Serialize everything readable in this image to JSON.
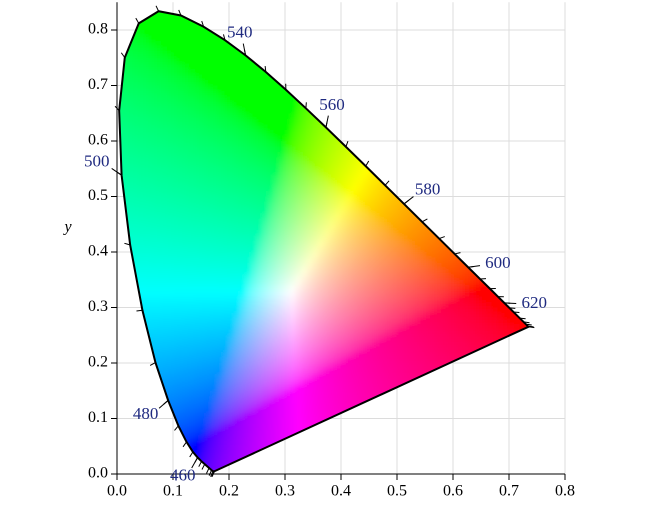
{
  "chart_data": {
    "type": "chromaticity",
    "y_label": "y",
    "xlim": [
      0,
      0.8
    ],
    "ylim": [
      0,
      0.85
    ],
    "xticks": [
      {
        "value": 0,
        "label": "0.0"
      },
      {
        "value": 0.1,
        "label": "0.1"
      },
      {
        "value": 0.2,
        "label": "0.2"
      },
      {
        "value": 0.3,
        "label": "0.3"
      },
      {
        "value": 0.4,
        "label": "0.4"
      },
      {
        "value": 0.5,
        "label": "0.5"
      },
      {
        "value": 0.6,
        "label": "0.6"
      },
      {
        "value": 0.7,
        "label": "0.7"
      },
      {
        "value": 0.8,
        "label": "0.8"
      }
    ],
    "yticks": [
      {
        "value": 0,
        "label": "0.0"
      },
      {
        "value": 0.1,
        "label": "0.1"
      },
      {
        "value": 0.2,
        "label": "0.2"
      },
      {
        "value": 0.3,
        "label": "0.3"
      },
      {
        "value": 0.4,
        "label": "0.4"
      },
      {
        "value": 0.5,
        "label": "0.5"
      },
      {
        "value": 0.6,
        "label": "0.6"
      },
      {
        "value": 0.7,
        "label": "0.7"
      },
      {
        "value": 0.8,
        "label": "0.8"
      }
    ],
    "grid": true,
    "white_point": [
      0.3127,
      0.329
    ],
    "locus": {
      "wavelengths": [
        380,
        400,
        420,
        430,
        440,
        450,
        455,
        460,
        465,
        470,
        475,
        480,
        485,
        490,
        495,
        500,
        505,
        510,
        515,
        520,
        525,
        530,
        535,
        540,
        545,
        550,
        555,
        560,
        565,
        570,
        575,
        580,
        585,
        590,
        595,
        600,
        605,
        610,
        615,
        620,
        625,
        630,
        640,
        650,
        660,
        680,
        700
      ],
      "x": [
        0.1741,
        0.1733,
        0.1714,
        0.1689,
        0.1644,
        0.1566,
        0.151,
        0.144,
        0.1355,
        0.1241,
        0.1096,
        0.0913,
        0.0687,
        0.0454,
        0.0235,
        0.0082,
        0.0039,
        0.0139,
        0.0389,
        0.0743,
        0.1142,
        0.1547,
        0.1929,
        0.2296,
        0.2658,
        0.3016,
        0.3373,
        0.3731,
        0.4087,
        0.4441,
        0.4788,
        0.5125,
        0.5448,
        0.5752,
        0.6029,
        0.627,
        0.6482,
        0.6658,
        0.6801,
        0.6915,
        0.7006,
        0.7079,
        0.719,
        0.726,
        0.73,
        0.7334,
        0.7347
      ],
      "y": [
        0.005,
        0.0048,
        0.0051,
        0.0069,
        0.0109,
        0.0177,
        0.0227,
        0.0297,
        0.0399,
        0.0578,
        0.0868,
        0.1327,
        0.2007,
        0.295,
        0.4127,
        0.5384,
        0.6548,
        0.7502,
        0.812,
        0.8338,
        0.8262,
        0.8059,
        0.7816,
        0.7543,
        0.7243,
        0.6923,
        0.6589,
        0.6245,
        0.5896,
        0.5547,
        0.5202,
        0.4866,
        0.4544,
        0.4242,
        0.3965,
        0.3725,
        0.3514,
        0.334,
        0.3197,
        0.3083,
        0.2993,
        0.292,
        0.2809,
        0.274,
        0.27,
        0.2666,
        0.2653
      ]
    },
    "wavelength_labels": [
      460,
      480,
      500,
      540,
      560,
      580,
      600,
      620
    ]
  }
}
